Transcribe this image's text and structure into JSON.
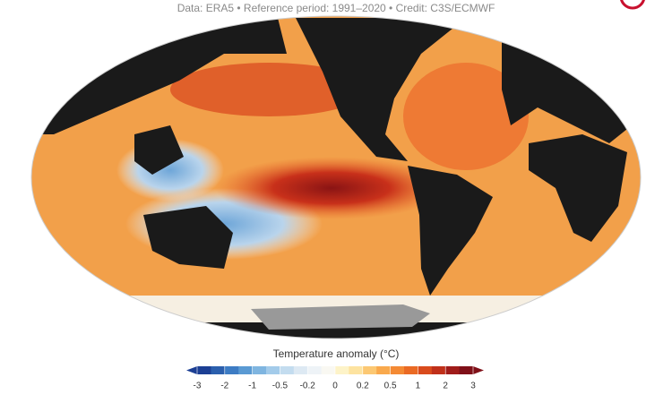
{
  "header": {
    "subtitle": "Data: ERA5 • Reference period: 1991–2020 • Credit: C3S/ECMWF"
  },
  "colorbar": {
    "title": "Temperature anomaly (°C)",
    "ticks": [
      -3,
      -2,
      -1,
      -0.5,
      -0.2,
      0,
      0.2,
      0.5,
      1,
      2,
      3
    ],
    "colors": [
      "#1c3f94",
      "#2b5fad",
      "#3d7cc4",
      "#5a9ad3",
      "#7fb5e0",
      "#a3cbea",
      "#c3dcef",
      "#dde9f3",
      "#eef3f7",
      "#f9f8f2",
      "#fdf3c8",
      "#fde3a0",
      "#fcc873",
      "#f9a94d",
      "#f48a34",
      "#ea6a24",
      "#d94b1d",
      "#c0301a",
      "#a01c1a",
      "#7f1018"
    ]
  }
}
